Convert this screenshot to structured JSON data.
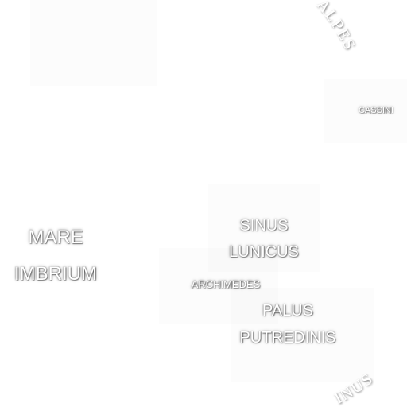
{
  "map": {
    "labels": {
      "mare_imbrium": [
        "MARE",
        "IMBRIUM"
      ],
      "sinus_lunicus": [
        "SINUS",
        "LUNICUS"
      ],
      "palus_putredinis": [
        "PALUS",
        "PUTREDINIS"
      ],
      "archimedes": "ARCHIMEDES",
      "cassini": "CASSINI",
      "montes_alpes_fragment": "ALPES",
      "montes_apenninus_fragment": "INUS"
    },
    "colors": {
      "background": "#ffffff",
      "label": "#ffffff",
      "label_shadow": "#000000"
    }
  }
}
